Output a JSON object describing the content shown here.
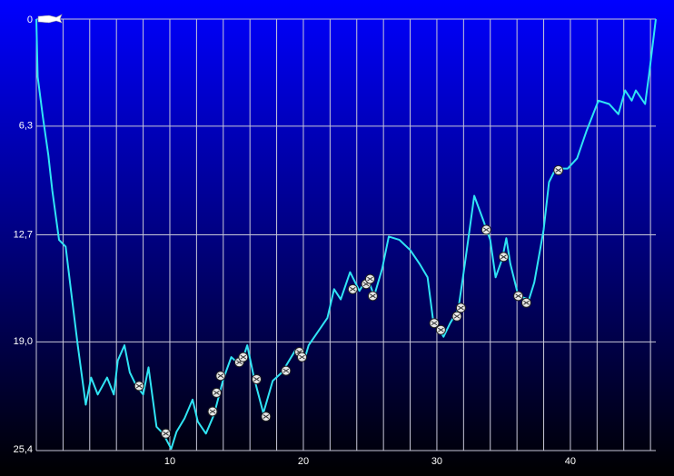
{
  "chart_data": {
    "type": "line",
    "xlim": [
      0,
      46.4
    ],
    "ylim": [
      25.4,
      0
    ],
    "xticks": [
      10,
      20,
      30,
      40
    ],
    "x_gridlines": [
      2,
      4,
      6,
      8,
      10,
      12,
      14,
      16,
      18,
      20,
      22,
      24,
      26,
      28,
      30,
      32,
      34,
      36,
      38,
      40,
      42,
      44,
      46
    ],
    "yticks": [
      0,
      {
        "value": 6.3,
        "label": "6,3"
      },
      {
        "value": 12.7,
        "label": "12,7"
      },
      {
        "value": 19.0,
        "label": "19,0"
      },
      {
        "value": 25.4,
        "label": "25,4"
      }
    ],
    "grid": true,
    "x": [
      0,
      0.1,
      0.5,
      0.9,
      1.2,
      1.7,
      2.2,
      2.6,
      3.1,
      3.7,
      4.1,
      4.6,
      5.3,
      5.8,
      6.1,
      6.6,
      7.0,
      7.5,
      8.0,
      8.4,
      9.0,
      9.5,
      10.1,
      10.5,
      11.1,
      11.7,
      12.1,
      12.7,
      13.3,
      14.0,
      14.6,
      15.3,
      15.8,
      16.3,
      17.0,
      17.7,
      18.4,
      19.4,
      20.1,
      20.4,
      21.1,
      21.8,
      22.3,
      22.8,
      23.5,
      24.2,
      24.8,
      25.3,
      25.9,
      26.4,
      27.2,
      28.0,
      28.7,
      29.3,
      29.7,
      30.5,
      31.0,
      31.6,
      32.1,
      32.8,
      33.5,
      34.0,
      34.4,
      34.9,
      35.2,
      35.5,
      36.1,
      36.9,
      37.3,
      38.0,
      38.4,
      38.9,
      39.8,
      40.5,
      41.2,
      42.1,
      42.9,
      43.6,
      44.1,
      44.6,
      44.9,
      45.6,
      45.9,
      46.4
    ],
    "series": [
      {
        "color": "#30e4f4",
        "values": [
          0,
          3.4,
          5.8,
          8.0,
          10.1,
          13.0,
          13.4,
          16.0,
          19.2,
          22.7,
          21.1,
          22.1,
          21.1,
          22.1,
          20.1,
          19.2,
          20.8,
          21.6,
          22.1,
          20.5,
          24.0,
          24.4,
          25.3,
          24.3,
          23.5,
          22.4,
          23.7,
          24.4,
          23.3,
          21.2,
          19.9,
          20.4,
          19.2,
          21.1,
          23.2,
          21.3,
          20.8,
          19.5,
          20.0,
          19.2,
          18.4,
          17.6,
          15.9,
          16.5,
          14.9,
          16.0,
          15.2,
          16.3,
          14.7,
          12.8,
          13.0,
          13.6,
          14.4,
          15.2,
          17.6,
          18.7,
          17.9,
          17.1,
          14.4,
          10.4,
          11.9,
          13.0,
          15.2,
          14.1,
          12.9,
          14.4,
          16.3,
          16.5,
          15.5,
          12.4,
          9.6,
          8.8,
          8.8,
          8.2,
          6.6,
          4.8,
          5.0,
          5.6,
          4.2,
          4.8,
          4.2,
          5.0,
          3.2,
          0
        ]
      }
    ],
    "event_markers": {
      "x": [
        7.7,
        9.7,
        13.2,
        13.5,
        13.8,
        15.2,
        15.5,
        16.5,
        17.2,
        18.7,
        19.7,
        19.9,
        23.7,
        24.7,
        25.0,
        25.2,
        29.8,
        30.3,
        31.5,
        31.8,
        33.7,
        35.0,
        36.1,
        36.7,
        39.1
      ],
      "y": [
        21.6,
        24.4,
        23.1,
        22.0,
        21.0,
        20.2,
        19.9,
        21.2,
        23.4,
        20.7,
        19.6,
        19.9,
        15.9,
        15.6,
        15.3,
        16.3,
        17.9,
        18.3,
        17.5,
        17.0,
        12.4,
        14.0,
        16.3,
        16.7,
        8.9
      ]
    }
  }
}
